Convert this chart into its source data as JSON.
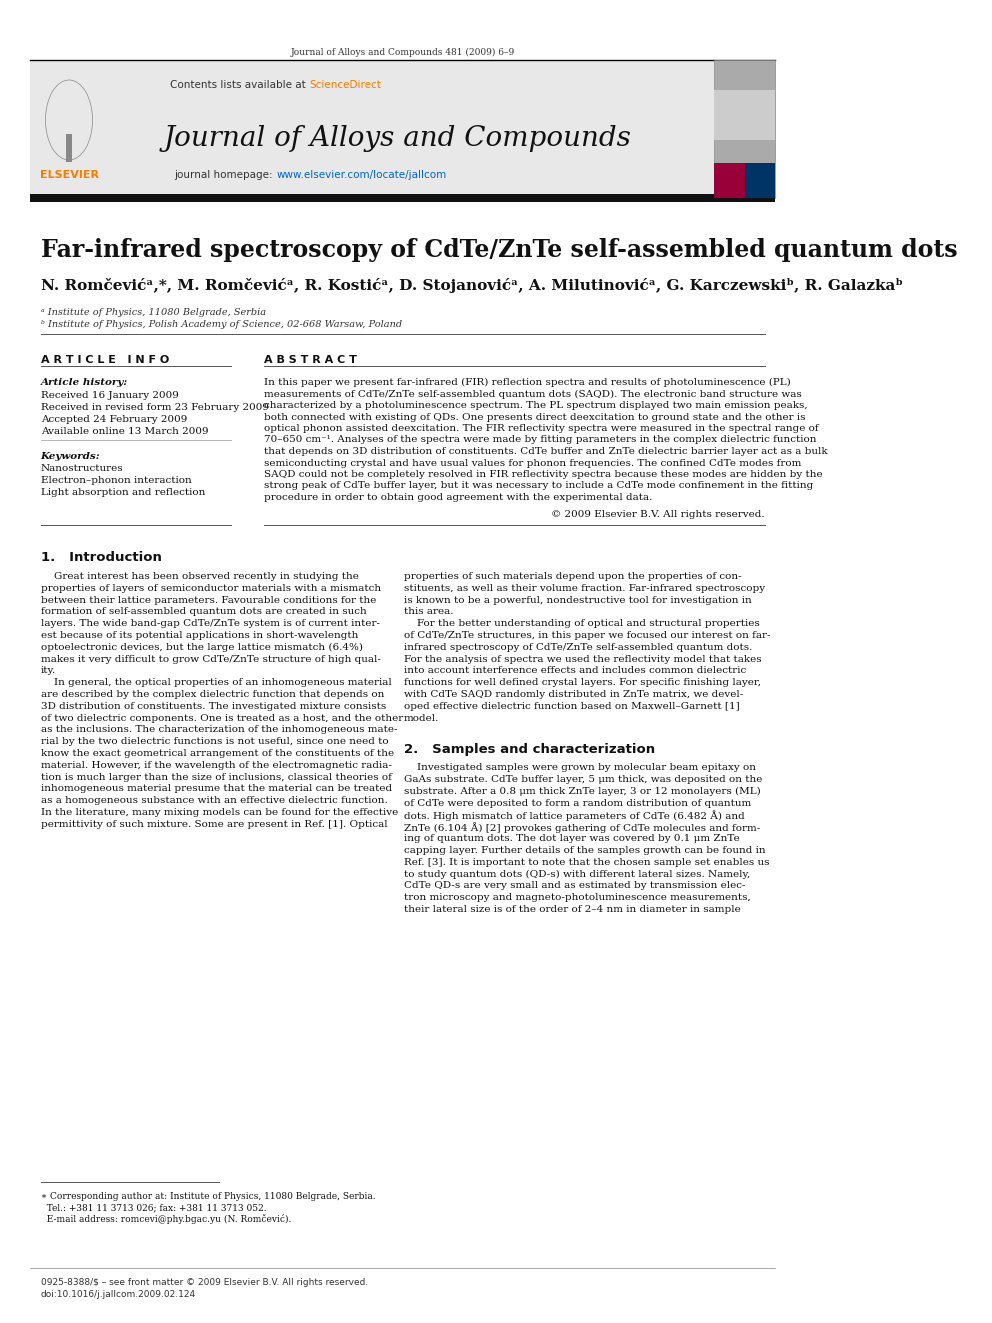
{
  "page_title": "Journal of Alloys and Compounds 481 (2009) 6–9",
  "journal_name": "Journal of Alloys and Compounds",
  "journal_homepage": "www.elsevier.com/locate/jallcom",
  "contents_line": "Contents lists available at ",
  "sciencedirect": "ScienceDirect",
  "article_title": "Far-infrared spectroscopy of CdTe/ZnTe self-assembled quantum dots",
  "author_line": "N. Romčevićᵃ,*, M. Romčevićᵃ, R. Kostićᵃ, D. Stojanovićᵃ, A. Milutinovićᵃ, G. Karczewskiᵇ, R. Galazkaᵇ",
  "affiliation_a": "ᵃ Institute of Physics, 11080 Belgrade, Serbia",
  "affiliation_b": "ᵇ Institute of Physics, Polish Academy of Science, 02-668 Warsaw, Poland",
  "article_info_title": "A R T I C L E   I N F O",
  "abstract_title": "A B S T R A C T",
  "article_history_label": "Article history:",
  "received": "Received 16 January 2009",
  "received_revised": "Received in revised form 23 February 2009",
  "accepted": "Accepted 24 February 2009",
  "available": "Available online 13 March 2009",
  "keywords_label": "Keywords:",
  "keywords": [
    "Nanostructures",
    "Electron–phonon interaction",
    "Light absorption and reflection"
  ],
  "abstract_lines": [
    "In this paper we present far-infrared (FIR) reflection spectra and results of photoluminescence (PL)",
    "measurements of CdTe/ZnTe self-assembled quantum dots (SAQD). The electronic band structure was",
    "characterized by a photoluminescence spectrum. The PL spectrum displayed two main emission peaks,",
    "both connected with existing of QDs. One presents direct deexcitation to ground state and the other is",
    "optical phonon assisted deexcitation. The FIR reflectivity spectra were measured in the spectral range of",
    "70–650 cm⁻¹. Analyses of the spectra were made by fitting parameters in the complex dielectric function",
    "that depends on 3D distribution of constituents. CdTe buffer and ZnTe dielectric barrier layer act as a bulk",
    "semiconducting crystal and have usual values for phonon frequencies. The confined CdTe modes from",
    "SAQD could not be completely resolved in FIR reflectivity spectra because these modes are hidden by the",
    "strong peak of CdTe buffer layer, but it was necessary to include a CdTe mode confinement in the fitting",
    "procedure in order to obtain good agreement with the experimental data."
  ],
  "copyright": "© 2009 Elsevier B.V. All rights reserved.",
  "section1_title": "1.   Introduction",
  "col1_lines": [
    "    Great interest has been observed recently in studying the",
    "properties of layers of semiconductor materials with a mismatch",
    "between their lattice parameters. Favourable conditions for the",
    "formation of self-assembled quantum dots are created in such",
    "layers. The wide band-gap CdTe/ZnTe system is of current inter-",
    "est because of its potential applications in short-wavelength",
    "optoelectronic devices, but the large lattice mismatch (6.4%)",
    "makes it very difficult to grow CdTe/ZnTe structure of high qual-",
    "ity.",
    "    In general, the optical properties of an inhomogeneous material",
    "are described by the complex dielectric function that depends on",
    "3D distribution of constituents. The investigated mixture consists",
    "of two dielectric components. One is treated as a host, and the other",
    "as the inclusions. The characterization of the inhomogeneous mate-",
    "rial by the two dielectric functions is not useful, since one need to",
    "know the exact geometrical arrangement of the constituents of the",
    "material. However, if the wavelength of the electromagnetic radia-",
    "tion is much larger than the size of inclusions, classical theories of",
    "inhomogeneous material presume that the material can be treated",
    "as a homogeneous substance with an effective dielectric function.",
    "In the literature, many mixing models can be found for the effective",
    "permittivity of such mixture. Some are present in Ref. [1]. Optical"
  ],
  "col2_lines": [
    "properties of such materials depend upon the properties of con-",
    "stituents, as well as their volume fraction. Far-infrared spectroscopy",
    "is known to be a powerful, nondestructive tool for investigation in",
    "this area.",
    "    For the better understanding of optical and structural properties",
    "of CdTe/ZnTe structures, in this paper we focused our interest on far-",
    "infrared spectroscopy of CdTe/ZnTe self-assembled quantum dots.",
    "For the analysis of spectra we used the reflectivity model that takes",
    "into account interference effects and includes common dielectric",
    "functions for well defined crystal layers. For specific finishing layer,",
    "with CdTe SAQD randomly distributed in ZnTe matrix, we devel-",
    "oped effective dielectric function based on Maxwell–Garnett [1]",
    "model."
  ],
  "section2_title": "2.   Samples and characterization",
  "sec2_lines": [
    "    Investigated samples were grown by molecular beam epitaxy on",
    "GaAs substrate. CdTe buffer layer, 5 μm thick, was deposited on the",
    "substrate. After a 0.8 μm thick ZnTe layer, 3 or 12 monolayers (ML)",
    "of CdTe were deposited to form a random distribution of quantum",
    "dots. High mismatch of lattice parameters of CdTe (6.482 Å) and",
    "ZnTe (6.104 Å) [2] provokes gathering of CdTe molecules and form-",
    "ing of quantum dots. The dot layer was covered by 0.1 μm ZnTe",
    "capping layer. Further details of the samples growth can be found in",
    "Ref. [3]. It is important to note that the chosen sample set enables us",
    "to study quantum dots (QD-s) with different lateral sizes. Namely,",
    "CdTe QD-s are very small and as estimated by transmission elec-",
    "tron microscopy and magneto-photoluminescence measurements,",
    "their lateral size is of the order of 2–4 nm in diameter in sample"
  ],
  "corr_lines": [
    "∗ Corresponding author at: Institute of Physics, 11080 Belgrade, Serbia.",
    "  Tel.: +381 11 3713 026; fax: +381 11 3713 052.",
    "  E-mail address: romcevi@phy.bgac.yu (N. Romčević)."
  ],
  "footer_line1": "0925-8388/$ – see front matter © 2009 Elsevier B.V. All rights reserved.",
  "footer_line2": "doi:10.1016/j.jallcom.2009.02.124",
  "bg_header_color": "#e8e8e8",
  "sciencedirect_color": "#f97b00",
  "link_color": "#0066cc",
  "elsevier_orange": "#f97b00"
}
